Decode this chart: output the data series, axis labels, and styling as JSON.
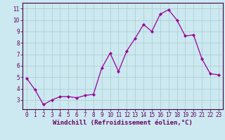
{
  "x": [
    0,
    1,
    2,
    3,
    4,
    5,
    6,
    7,
    8,
    9,
    10,
    11,
    12,
    13,
    14,
    15,
    16,
    17,
    18,
    19,
    20,
    21,
    22,
    23
  ],
  "y": [
    4.9,
    3.9,
    2.6,
    3.0,
    3.3,
    3.3,
    3.2,
    3.4,
    3.5,
    5.8,
    7.1,
    5.5,
    7.3,
    8.4,
    9.6,
    9.0,
    10.5,
    10.9,
    10.0,
    8.6,
    8.7,
    6.6,
    5.3,
    5.2
  ],
  "line_color": "#990099",
  "marker": "D",
  "marker_size": 2.2,
  "bg_color": "#cce8f0",
  "grid_color": "#aacccc",
  "xlabel": "Windchill (Refroidissement éolien,°C)",
  "xlim": [
    -0.5,
    23.5
  ],
  "ylim": [
    2.2,
    11.5
  ],
  "yticks": [
    3,
    4,
    5,
    6,
    7,
    8,
    9,
    10,
    11
  ],
  "xticks": [
    0,
    1,
    2,
    3,
    4,
    5,
    6,
    7,
    8,
    9,
    10,
    11,
    12,
    13,
    14,
    15,
    16,
    17,
    18,
    19,
    20,
    21,
    22,
    23
  ],
  "tick_label_fontsize": 5.5,
  "xlabel_fontsize": 6.5,
  "axis_color": "#660066",
  "spine_color": "#440044",
  "linewidth": 0.9
}
